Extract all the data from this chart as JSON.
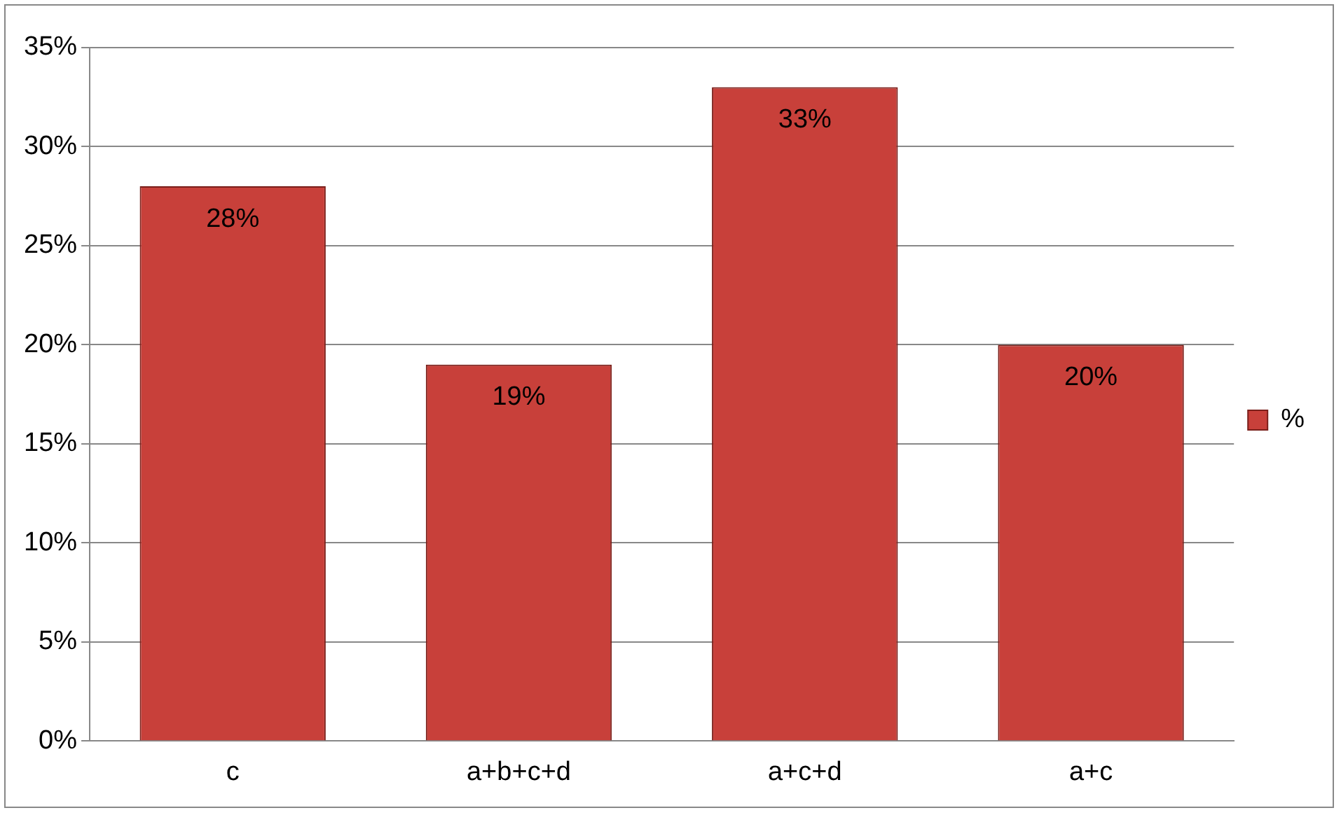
{
  "chart_data": {
    "type": "bar",
    "categories": [
      "c",
      "a+b+c+d",
      "a+c+d",
      "a+c"
    ],
    "series": [
      {
        "name": "%",
        "color": "#c8403a",
        "values": [
          28,
          19,
          33,
          20
        ],
        "value_labels": [
          "28%",
          "19%",
          "33%",
          "20%"
        ]
      }
    ],
    "ylim": [
      0,
      35
    ],
    "yticks": [
      {
        "value": 0,
        "label": "0%"
      },
      {
        "value": 5,
        "label": "5%"
      },
      {
        "value": 10,
        "label": "10%"
      },
      {
        "value": 15,
        "label": "15%"
      },
      {
        "value": 20,
        "label": "20%"
      },
      {
        "value": 25,
        "label": "25%"
      },
      {
        "value": 30,
        "label": "30%"
      },
      {
        "value": 35,
        "label": "35%"
      }
    ],
    "grid": "y",
    "legend": "right"
  }
}
